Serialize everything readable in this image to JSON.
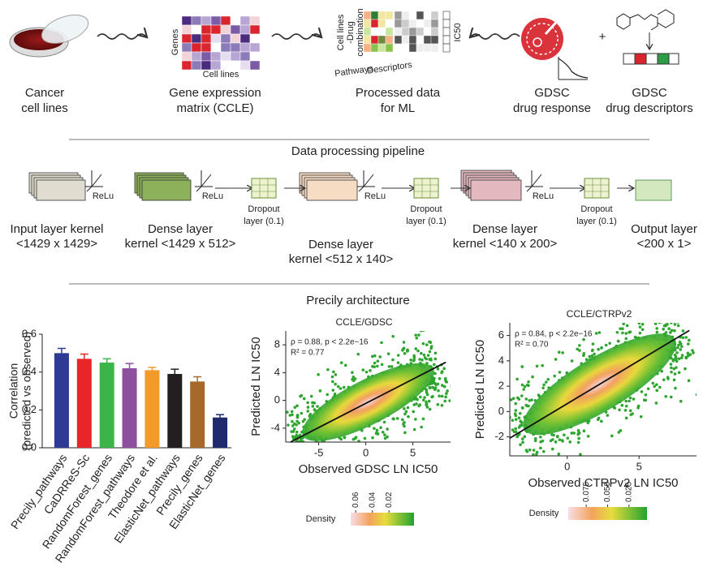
{
  "workflow": {
    "steps": [
      {
        "label": [
          "Cancer",
          "cell lines"
        ]
      },
      {
        "label": [
          "Gene expression",
          "matrix (CCLE)"
        ]
      },
      {
        "label": [
          "Processed data",
          "for ML"
        ]
      },
      {
        "label": [
          "GDSC",
          "drug response"
        ]
      },
      {
        "label": [
          "GDSC",
          "drug descriptors"
        ]
      }
    ],
    "icon_labels": {
      "genes": "Genes",
      "cell_lines": "Cell lines",
      "combination": [
        "Cell lines",
        "-Drug",
        "combination"
      ],
      "pathways": "Pathways",
      "descriptors": "Descriptors",
      "ic50": "IC50",
      "plus": "+"
    }
  },
  "section_titles": [
    "Data processing pipeline",
    "Precily architecture"
  ],
  "pipeline": {
    "layers": [
      {
        "label": [
          "Input layer kernel",
          "<1429 x 1429>"
        ]
      },
      {
        "label": [
          "Dense layer",
          "kernel <1429 x 512>"
        ]
      },
      {
        "label": [
          "Dense layer",
          "kernel <512 x 140>"
        ]
      },
      {
        "label": [
          "Dense layer",
          "kernel <140 x 200>"
        ]
      },
      {
        "label": [
          "Output layer",
          "<200 x 1>"
        ]
      }
    ],
    "activation": "ReLu",
    "dropout": [
      "Dropout",
      "layer (0.1)"
    ]
  },
  "chart_data": [
    {
      "type": "bar",
      "ylabel": [
        "Correlation",
        "(predicted vs observed)"
      ],
      "categories": [
        "Precily_pathways",
        "CaDRReS-Sc",
        "RandomForest_genes",
        "RandomForest_pathways",
        "Theodore et al.",
        "ElasticNet_pathways",
        "Precily_genes",
        "ElasticNet_genes"
      ],
      "values": [
        0.5,
        0.47,
        0.45,
        0.42,
        0.41,
        0.39,
        0.35,
        0.16
      ],
      "errors": [
        0.025,
        0.025,
        0.02,
        0.025,
        0.015,
        0.025,
        0.025,
        0.015
      ],
      "colors": [
        "#2e3a94",
        "#e8262a",
        "#3bb54a",
        "#8e4f9e",
        "#f39a2b",
        "#231f20",
        "#a6692a",
        "#1f2a6e"
      ],
      "ylim": [
        0,
        0.6
      ],
      "yticks": [
        {
          "value": 0,
          "label": "0.0"
        },
        0.2,
        0.4,
        0.6
      ]
    },
    {
      "type": "density",
      "title": "CCLE/GDSC",
      "annotations": [
        "ρ = 0.88, p < 2.2e−16",
        "R² = 0.77"
      ],
      "xlabel": "Observed GDSC LN IC50",
      "ylabel": "Predicted LN IC50",
      "xlim": [
        -8.5,
        9
      ],
      "xticks": [
        -5,
        0,
        5
      ],
      "ylim": [
        -6,
        10
      ],
      "yticks": [
        -4,
        0,
        4,
        8
      ],
      "fit_line": {
        "x": [
          -8,
          8.5
        ],
        "y": [
          -6,
          5.5
        ]
      },
      "colorbar": {
        "label": "Density",
        "lim": [
          0.066,
          -0.01
        ],
        "ticks": [
          0.06,
          0.04,
          0.02
        ]
      }
    },
    {
      "type": "density",
      "title": "CCLE/CTRPv2",
      "annotations": [
        "ρ = 0.84, p < 2.2e−16",
        "R² = 0.70"
      ],
      "xlabel": "Observed CTRPv2 LN IC50",
      "ylabel": "Predicted LN IC50",
      "xlim": [
        -4,
        9
      ],
      "xticks": [
        0,
        5
      ],
      "ylim": [
        -3.5,
        7
      ],
      "yticks": [
        -2,
        0,
        2,
        4,
        6
      ],
      "fit_line": {
        "x": [
          -4,
          8.5
        ],
        "y": [
          -2.1,
          6.4
        ]
      },
      "colorbar": {
        "label": "Density",
        "lim": [
          0.096,
          0.004
        ],
        "ticks": [
          0.075,
          {
            "value": 0.05,
            "label": "0.050"
          },
          0.025
        ]
      }
    }
  ]
}
